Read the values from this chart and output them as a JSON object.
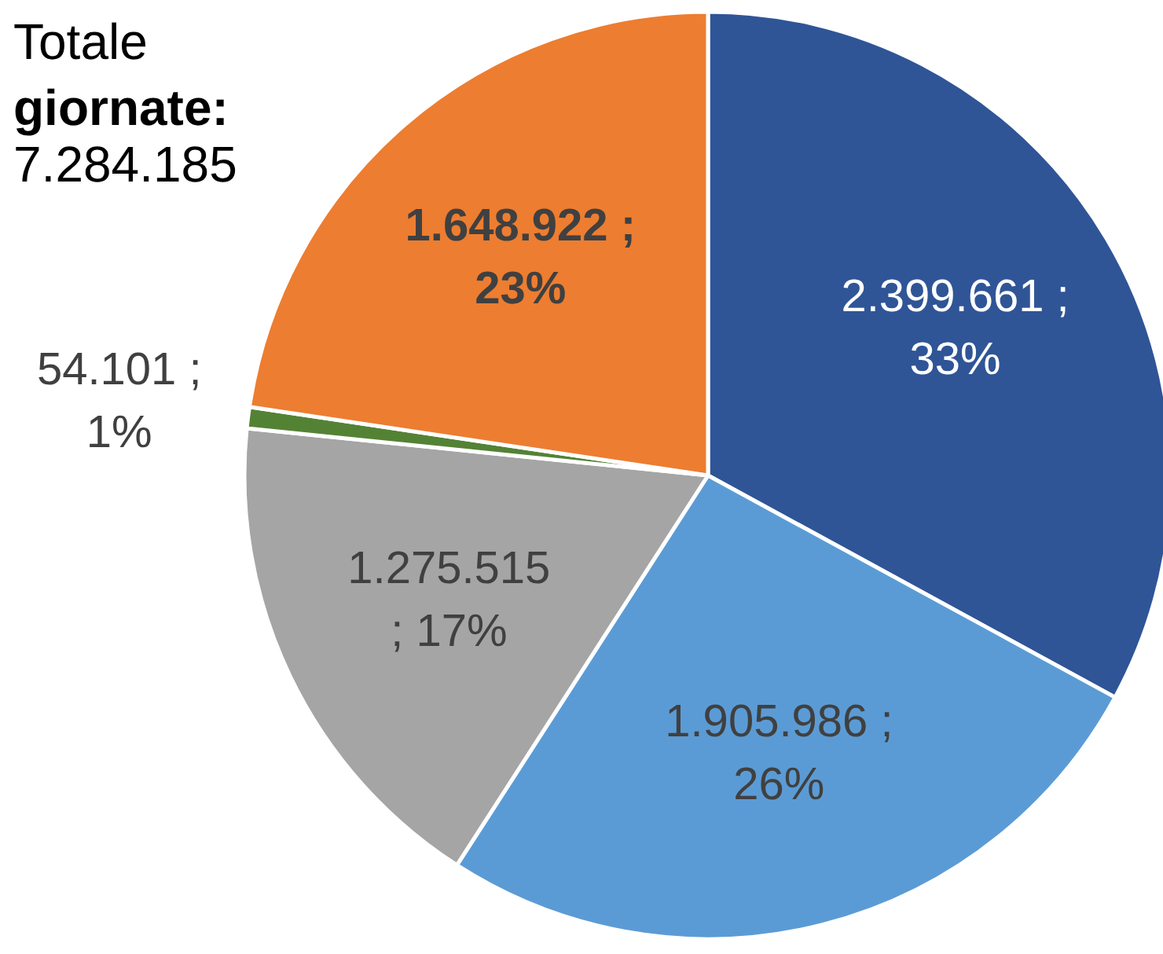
{
  "chart_data": {
    "type": "pie",
    "title": "Totale giornate: 7.284.185",
    "categories": [
      null,
      null,
      null,
      null,
      null
    ],
    "values": [
      2399661,
      1905986,
      1275515,
      54101,
      1648922
    ],
    "colors": [
      "#2f5597",
      "#5b9bd5",
      "#a5a5a5",
      "#548235",
      "#ed7d31"
    ],
    "value_labels": [
      "2.399.661 ;\n33%",
      "1.905.986 ;\n26%",
      "1.275.515\n; 17%",
      "54.101 ;\n1%",
      "1.648.922 ;\n23%"
    ]
  }
}
